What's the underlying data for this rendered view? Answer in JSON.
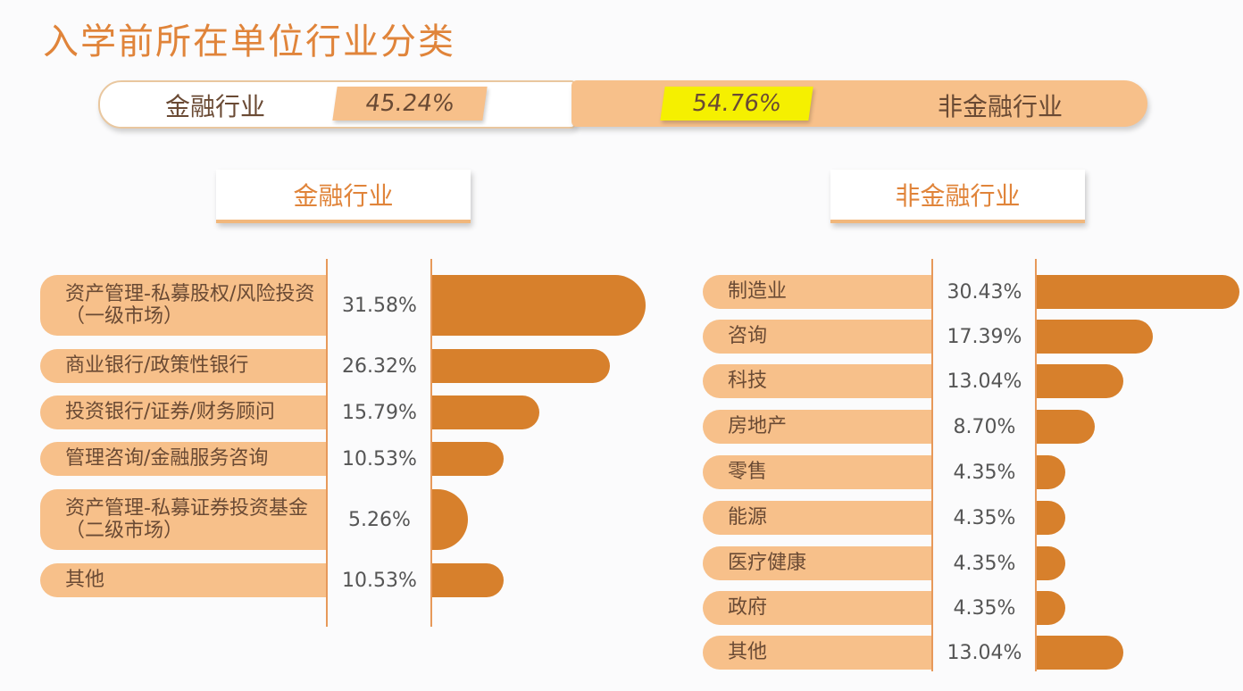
{
  "title": "入学前所在单位行业分类",
  "summary": {
    "left": {
      "label": "金融行业",
      "value": "45.24%"
    },
    "right": {
      "label": "非金融行业",
      "value": "54.76%"
    }
  },
  "colors": {
    "title": "#e0843a",
    "label_fill": "#f7c08a",
    "bar_fill": "#d7802c",
    "highlight": "#f5f000"
  },
  "chart_data": [
    {
      "type": "bar",
      "title": "金融行业",
      "orientation": "horizontal",
      "categories": [
        "资产管理-私募股权/风险投资（一级市场）",
        "商业银行/政策性银行",
        "投资银行/证券/财务顾问",
        "管理咨询/金融服务咨询",
        "资产管理-私募证券投资基金（二级市场）",
        "其他"
      ],
      "values": [
        31.58,
        26.32,
        15.79,
        10.53,
        5.26,
        10.53
      ],
      "labels": [
        "31.58%",
        "26.32%",
        "15.79%",
        "10.53%",
        "5.26%",
        "10.53%"
      ]
    },
    {
      "type": "bar",
      "title": "非金融行业",
      "orientation": "horizontal",
      "categories": [
        "制造业",
        "咨询",
        "科技",
        "房地产",
        "零售",
        "能源",
        "医疗健康",
        "政府",
        "其他"
      ],
      "values": [
        30.43,
        17.39,
        13.04,
        8.7,
        4.35,
        4.35,
        4.35,
        4.35,
        13.04
      ],
      "labels": [
        "30.43%",
        "17.39%",
        "13.04%",
        "8.70%",
        "4.35%",
        "4.35%",
        "4.35%",
        "4.35%",
        "13.04%"
      ]
    }
  ]
}
